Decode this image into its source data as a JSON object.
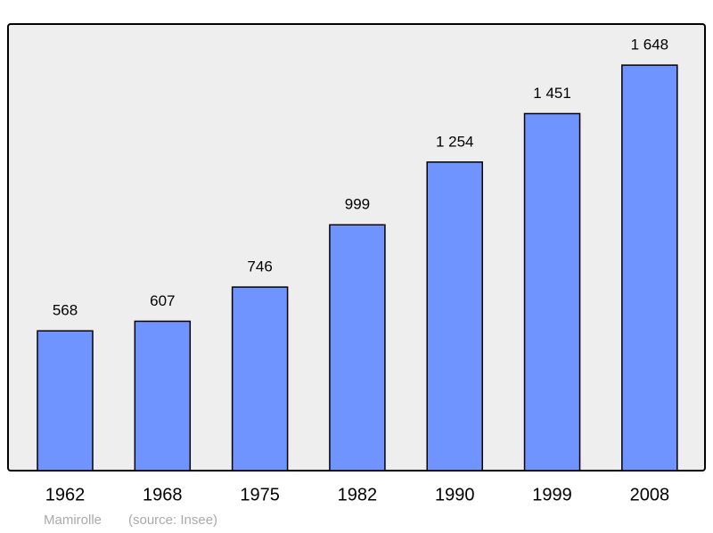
{
  "chart_data": {
    "type": "bar",
    "categories": [
      "1962",
      "1968",
      "1975",
      "1982",
      "1990",
      "1999",
      "2008"
    ],
    "values": [
      568,
      607,
      746,
      999,
      1254,
      1451,
      1648
    ],
    "value_labels": [
      "568",
      "607",
      "746",
      "999",
      "1 254",
      "1 451",
      "1 648"
    ],
    "color": "#7094ff",
    "ylim": [
      0,
      1815
    ],
    "subtitle": "Mamirolle",
    "source": "(source: Insee)"
  }
}
